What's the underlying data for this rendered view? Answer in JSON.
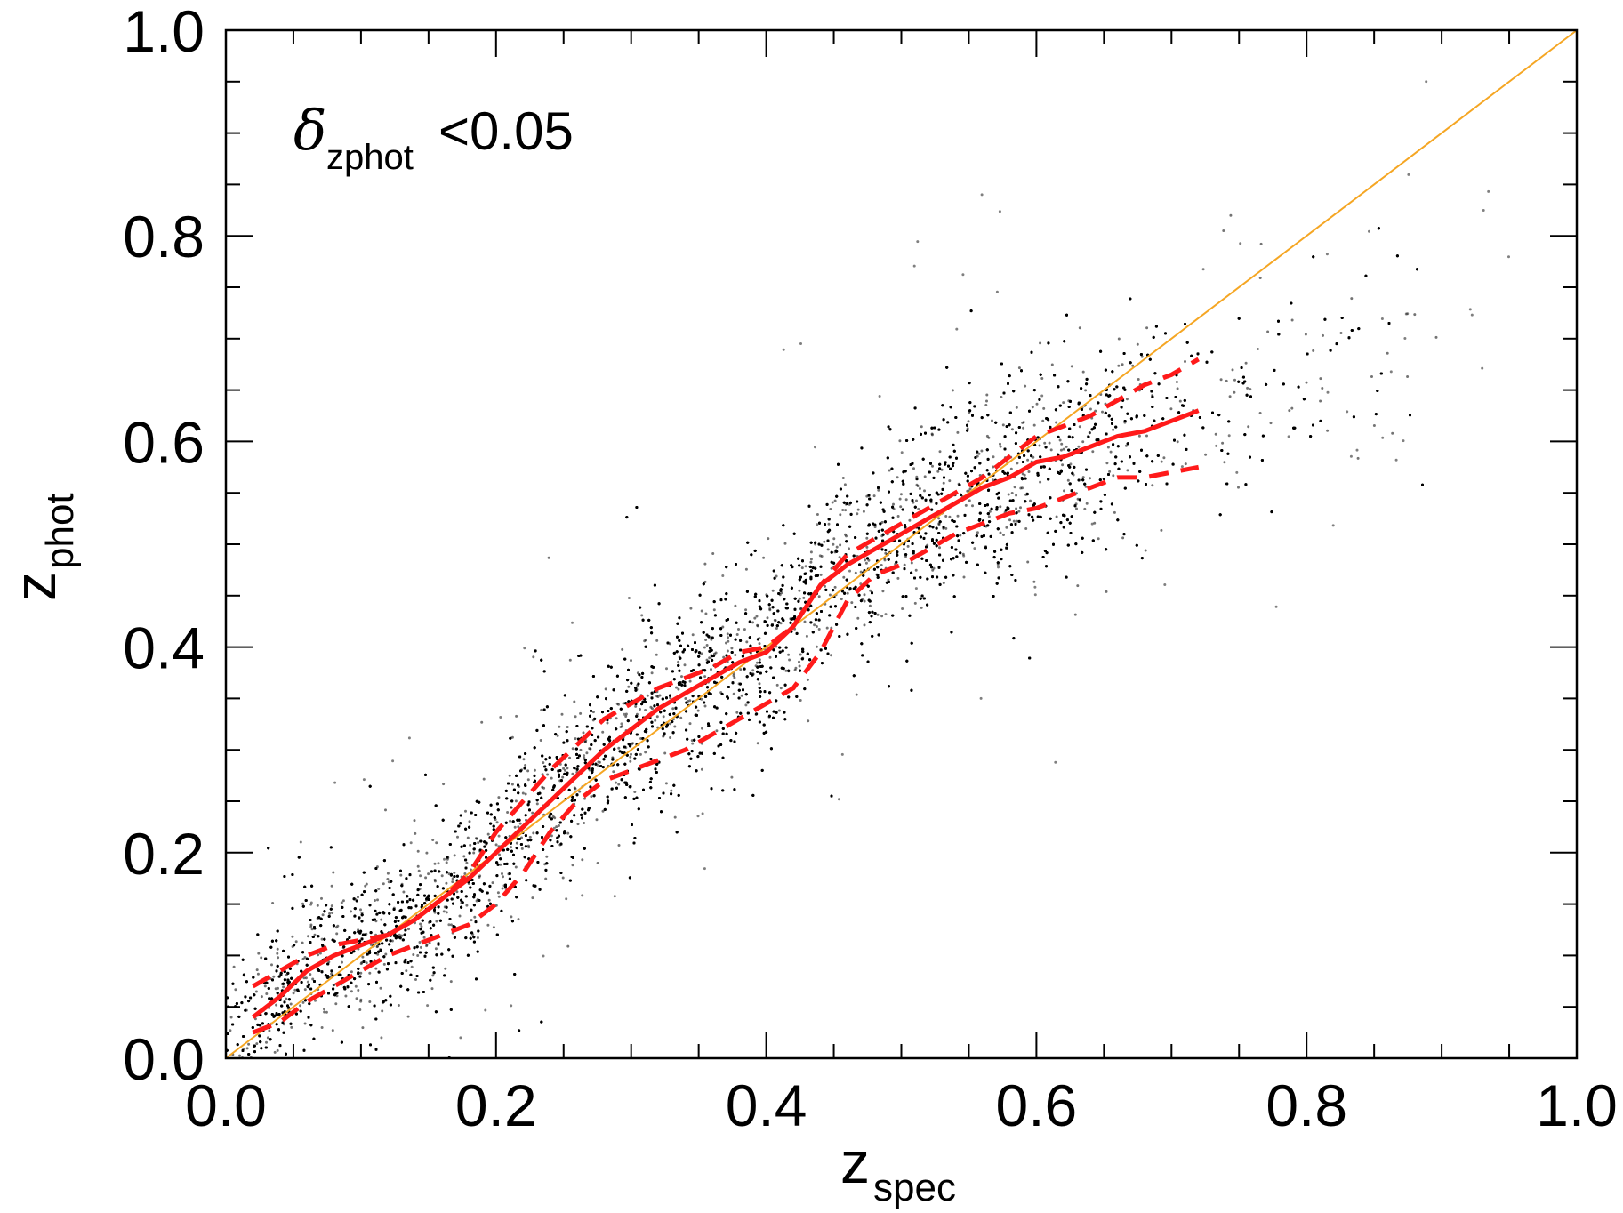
{
  "chart_data": {
    "type": "scatter",
    "title": "",
    "xlabel": {
      "main": "z",
      "sub": "spec"
    },
    "ylabel": {
      "main": "z",
      "sub": "phot"
    },
    "xlim": [
      0.0,
      1.0
    ],
    "ylim": [
      0.0,
      1.0
    ],
    "x_ticks": [
      "0.0",
      "0.2",
      "0.4",
      "0.6",
      "0.8",
      "1.0"
    ],
    "y_ticks": [
      "0.0",
      "0.2",
      "0.4",
      "0.6",
      "0.8",
      "1.0"
    ],
    "minor_tick_step": 0.05,
    "grid": false,
    "annotation": {
      "symbol": "δ",
      "sub": "zphot",
      "text": "<0.05"
    },
    "colors": {
      "points": "#000000",
      "one_to_one": "#f5a623",
      "median": "#ff1a1a",
      "percentiles": "#ff1a1a"
    },
    "scatter_cloud": {
      "description_note": "dense point cloud of galaxies around the median relation",
      "approx_x_range": [
        0.0,
        0.95
      ],
      "spread_sigma": 0.035
    },
    "series": [
      {
        "role": "one-to-one",
        "style": "solid-thin",
        "x": [
          0.0,
          1.0
        ],
        "y": [
          0.0,
          1.0
        ]
      },
      {
        "role": "median",
        "style": "solid",
        "x": [
          0.02,
          0.04,
          0.06,
          0.08,
          0.1,
          0.12,
          0.14,
          0.16,
          0.18,
          0.2,
          0.22,
          0.24,
          0.26,
          0.28,
          0.3,
          0.32,
          0.34,
          0.36,
          0.38,
          0.4,
          0.42,
          0.44,
          0.46,
          0.48,
          0.5,
          0.52,
          0.54,
          0.56,
          0.58,
          0.6,
          0.62,
          0.64,
          0.66,
          0.68,
          0.7,
          0.72
        ],
        "y": [
          0.04,
          0.06,
          0.085,
          0.1,
          0.11,
          0.12,
          0.135,
          0.155,
          0.175,
          0.2,
          0.225,
          0.25,
          0.275,
          0.3,
          0.32,
          0.34,
          0.355,
          0.37,
          0.385,
          0.395,
          0.42,
          0.46,
          0.48,
          0.495,
          0.51,
          0.525,
          0.54,
          0.555,
          0.565,
          0.58,
          0.585,
          0.595,
          0.605,
          0.61,
          0.62,
          0.63
        ]
      },
      {
        "role": "upper-percentile",
        "style": "dashed",
        "x": [
          0.02,
          0.04,
          0.06,
          0.08,
          0.1,
          0.12,
          0.14,
          0.16,
          0.18,
          0.2,
          0.22,
          0.24,
          0.26,
          0.28,
          0.3,
          0.32,
          0.34,
          0.36,
          0.38,
          0.4,
          0.42,
          0.44,
          0.46,
          0.48,
          0.5,
          0.52,
          0.54,
          0.56,
          0.58,
          0.6,
          0.62,
          0.64,
          0.66,
          0.68,
          0.7,
          0.72
        ],
        "y": [
          0.07,
          0.085,
          0.1,
          0.11,
          0.115,
          0.12,
          0.135,
          0.155,
          0.18,
          0.22,
          0.25,
          0.28,
          0.305,
          0.33,
          0.345,
          0.36,
          0.37,
          0.38,
          0.395,
          0.4,
          0.42,
          0.46,
          0.49,
          0.505,
          0.52,
          0.535,
          0.55,
          0.565,
          0.585,
          0.605,
          0.615,
          0.625,
          0.64,
          0.655,
          0.665,
          0.68
        ]
      },
      {
        "role": "lower-percentile",
        "style": "dashed",
        "x": [
          0.02,
          0.04,
          0.06,
          0.08,
          0.1,
          0.12,
          0.14,
          0.16,
          0.18,
          0.2,
          0.22,
          0.24,
          0.26,
          0.28,
          0.3,
          0.32,
          0.34,
          0.36,
          0.38,
          0.4,
          0.42,
          0.44,
          0.46,
          0.48,
          0.5,
          0.52,
          0.54,
          0.56,
          0.58,
          0.6,
          0.62,
          0.64,
          0.66,
          0.68,
          0.7,
          0.72
        ],
        "y": [
          0.025,
          0.035,
          0.055,
          0.07,
          0.085,
          0.1,
          0.11,
          0.12,
          0.13,
          0.15,
          0.18,
          0.22,
          0.25,
          0.27,
          0.28,
          0.29,
          0.3,
          0.315,
          0.33,
          0.345,
          0.36,
          0.395,
          0.445,
          0.47,
          0.48,
          0.495,
          0.51,
          0.52,
          0.53,
          0.535,
          0.545,
          0.555,
          0.565,
          0.565,
          0.57,
          0.575
        ]
      }
    ]
  }
}
